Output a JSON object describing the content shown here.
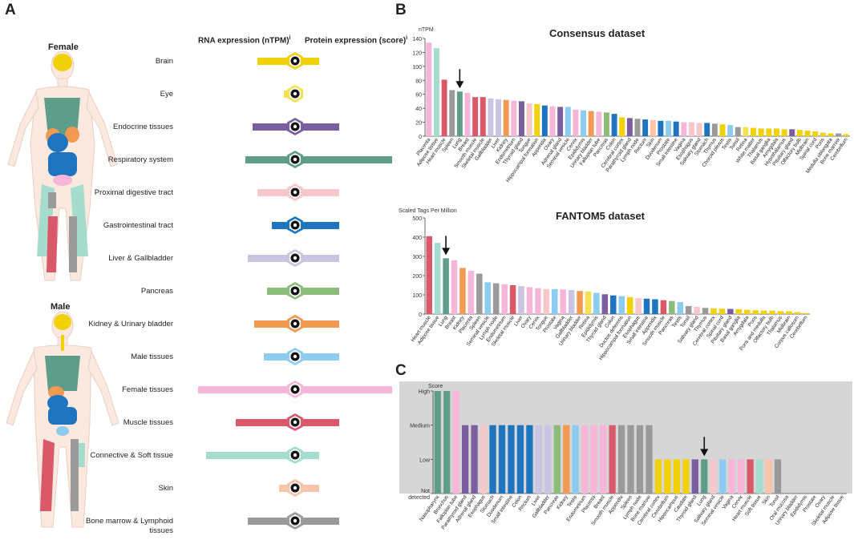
{
  "panels": {
    "a": "A",
    "b": "B",
    "c": "C"
  },
  "body_labels": {
    "female": "Female",
    "male": "Male"
  },
  "headers": {
    "rna": "RNA expression (nTPM)",
    "protein": "Protein expression (score)",
    "info_mark": "i"
  },
  "tissue_groups": [
    {
      "label": "Brain",
      "color": "#f1d10a",
      "rna": 0.24,
      "protein": 0.24
    },
    {
      "label": "Eye",
      "color": "#f5e052",
      "rna": 0.07,
      "protein": 0.0
    },
    {
      "label": "Endocrine tissues",
      "color": "#7a5ea0",
      "rna": 0.27,
      "protein": 0.45
    },
    {
      "label": "Respiratory system",
      "color": "#5e9d8a",
      "rna": 0.32,
      "protein": 0.98
    },
    {
      "label": "Proximal digestive tract",
      "color": "#f6c8cc",
      "rna": 0.24,
      "protein": 0.45
    },
    {
      "label": "Gastrointestinal tract",
      "color": "#1f74c0",
      "rna": 0.15,
      "protein": 0.45
    },
    {
      "label": "Liver & Gallbladder",
      "color": "#c9c4e2",
      "rna": 0.3,
      "protein": 0.45
    },
    {
      "label": "Pancreas",
      "color": "#8bbc7a",
      "rna": 0.18,
      "protein": 0.45
    },
    {
      "label": "Kidney & Urinary bladder",
      "color": "#f29a52",
      "rna": 0.26,
      "protein": 0.45
    },
    {
      "label": "Male tissues",
      "color": "#8cccf0",
      "rna": 0.2,
      "protein": 0.45
    },
    {
      "label": "Female tissues",
      "color": "#f6b6d8",
      "rna": 0.62,
      "protein": 0.98
    },
    {
      "label": "Muscle tissues",
      "color": "#d9586a",
      "rna": 0.38,
      "protein": 0.45
    },
    {
      "label": "Connective & Soft tissue",
      "color": "#a5dccd",
      "rna": 0.57,
      "protein": 0.24
    },
    {
      "label": "Skin",
      "color": "#f9c4a7",
      "rna": 0.1,
      "protein": 0.24
    },
    {
      "label": "Bone marrow & Lymphoid tissues",
      "color": "#9a9a9a",
      "rna": 0.3,
      "protein": 0.45
    }
  ],
  "chart_data": [
    {
      "type": "bar",
      "title": "Consensus dataset",
      "ylabel": "nTPM",
      "ylim": [
        0,
        140
      ],
      "yticks": [
        0,
        20,
        40,
        60,
        80,
        100,
        120,
        140
      ],
      "categories": [
        "Placenta",
        "Adipose tissue",
        "Heart muscle",
        "Spleen",
        "Lung",
        "Breast",
        "Smooth muscle",
        "Skeletal muscle",
        "Gallbladder",
        "Liver",
        "Kidney",
        "Endometrium",
        "Thyroid gland",
        "Tongue",
        "Hippocampal formation",
        "Appendix",
        "Ovary",
        "Adrenal gland",
        "Seminal vesicle",
        "Cervix",
        "Epididymis",
        "Urinary bladder",
        "Fallopian tube",
        "Pancreas",
        "Colon",
        "Cerebral cortex",
        "Parathyroid gland",
        "Lymph node",
        "Rectum",
        "Skin",
        "Duodenum",
        "Prostate",
        "Small intestine",
        "Vagina",
        "Esophagus",
        "Salivary gland",
        "Stomach",
        "Thymus",
        "Choroid plexus",
        "Testis",
        "Tonsil",
        "Retina",
        "White matter",
        "Thalamus",
        "Basal ganglia",
        "Amygdala",
        "Hypothalamus",
        "Pituitary gland",
        "Olfactory bulb",
        "Midbrain",
        "Spinal cord",
        "Pons",
        "Medulla oblongata",
        "Bone marrow",
        "Cerebellum"
      ],
      "values": [
        134,
        126,
        81,
        66,
        64,
        62,
        56,
        56,
        54,
        53,
        52,
        51,
        50,
        47,
        46,
        44,
        43,
        42,
        42,
        38,
        37,
        36,
        35,
        34,
        32,
        27,
        26,
        25,
        24,
        23,
        22,
        22,
        21,
        20,
        20,
        19,
        19,
        18,
        17,
        16,
        13,
        13,
        12,
        11,
        11,
        11,
        10,
        10,
        9,
        8,
        7,
        5,
        4,
        4,
        3
      ],
      "colors": [
        "#f6b6d8",
        "#a5dccd",
        "#d9586a",
        "#9a9a9a",
        "#5e9d8a",
        "#f6b6d8",
        "#d9586a",
        "#d9586a",
        "#c9c4e2",
        "#c9c4e2",
        "#f29a52",
        "#f6b6d8",
        "#7a5ea0",
        "#f6c8cc",
        "#f1d10a",
        "#1f74c0",
        "#f6b6d8",
        "#7a5ea0",
        "#8cccf0",
        "#f6b6d8",
        "#8cccf0",
        "#f29a52",
        "#f6b6d8",
        "#8bbc7a",
        "#1f74c0",
        "#f1d10a",
        "#7a5ea0",
        "#9a9a9a",
        "#1f74c0",
        "#f9c4a7",
        "#1f74c0",
        "#8cccf0",
        "#1f74c0",
        "#f6b6d8",
        "#f6c8cc",
        "#f6c8cc",
        "#1f74c0",
        "#9a9a9a",
        "#f1d10a",
        "#8cccf0",
        "#9a9a9a",
        "#f5e052",
        "#f1d10a",
        "#f1d10a",
        "#f1d10a",
        "#f1d10a",
        "#f1d10a",
        "#7a5ea0",
        "#f1d10a",
        "#f1d10a",
        "#f1d10a",
        "#f1d10a",
        "#f1d10a",
        "#9a9a9a",
        "#f1d10a"
      ],
      "arrow_category": "Lung"
    },
    {
      "type": "bar",
      "title": "FANTOM5 dataset",
      "ylabel": "Scaled Tags Per Million",
      "ylim": [
        0,
        500
      ],
      "yticks": [
        0,
        100,
        200,
        300,
        400,
        500
      ],
      "categories": [
        "Heart muscle",
        "Adipose tissue",
        "Lung",
        "Breast",
        "Kidney",
        "Placenta",
        "Spleen",
        "Seminal vesicle",
        "Lymph node",
        "Endometrium",
        "Skeletal muscle",
        "Liver",
        "Ovary",
        "Cervix",
        "Tongue",
        "Prostate",
        "Vagina",
        "Gallbladder",
        "Urinary bladder",
        "Retina",
        "Epididymis",
        "Thyroid gland",
        "Colon",
        "Ductus deferens",
        "Hippocampal formation",
        "Esophagus",
        "Small intestine",
        "Appendix",
        "Smooth muscle",
        "Pancreas",
        "Testis",
        "Tonsil",
        "Salivary gland",
        "Thymus",
        "Cerebral cortex",
        "Spinal cord",
        "Pituitary gland",
        "Basal ganglia",
        "Amygdala",
        "Pons",
        "Pons and medulla",
        "Olfactory bulb",
        "Thalamus",
        "Midbrain",
        "Corpus callosum",
        "Cerebellum"
      ],
      "values": [
        405,
        370,
        290,
        280,
        240,
        225,
        210,
        165,
        160,
        155,
        150,
        145,
        140,
        135,
        130,
        130,
        128,
        125,
        120,
        118,
        110,
        103,
        97,
        93,
        88,
        83,
        80,
        77,
        72,
        68,
        62,
        42,
        38,
        32,
        30,
        28,
        27,
        25,
        22,
        20,
        18,
        18,
        15,
        14,
        10,
        5
      ],
      "colors": [
        "#d9586a",
        "#a5dccd",
        "#5e9d8a",
        "#f6b6d8",
        "#f29a52",
        "#f6b6d8",
        "#9a9a9a",
        "#8cccf0",
        "#9a9a9a",
        "#f6b6d8",
        "#d9586a",
        "#c9c4e2",
        "#f6b6d8",
        "#f6b6d8",
        "#f6c8cc",
        "#8cccf0",
        "#f6b6d8",
        "#c9c4e2",
        "#f29a52",
        "#f5e052",
        "#8cccf0",
        "#7a5ea0",
        "#1f74c0",
        "#8cccf0",
        "#f1d10a",
        "#f6c8cc",
        "#1f74c0",
        "#1f74c0",
        "#d9586a",
        "#8bbc7a",
        "#8cccf0",
        "#9a9a9a",
        "#f6c8cc",
        "#9a9a9a",
        "#f1d10a",
        "#f1d10a",
        "#7a5ea0",
        "#f1d10a",
        "#f1d10a",
        "#f1d10a",
        "#f1d10a",
        "#f1d10a",
        "#f1d10a",
        "#f1d10a",
        "#f1d10a",
        "#f1d10a"
      ],
      "arrow_category": "Lung"
    },
    {
      "type": "bar",
      "title": "",
      "ylabel": "Score",
      "levels": [
        "Not detected",
        "Low",
        "Medium",
        "High"
      ],
      "categories": [
        "Nasopharynx",
        "Bronchus",
        "Fallopian tube",
        "Parathyroid gland",
        "Adrenal gland",
        "Esophagus",
        "Stomach",
        "Duodenum",
        "Small intestine",
        "Colon",
        "Rectum",
        "Liver",
        "Gallbladder",
        "Pancreas",
        "Kidney",
        "Testis",
        "Endometrium",
        "Placenta",
        "Breast",
        "Smooth muscle",
        "Appendix",
        "Spleen",
        "Lymph node",
        "Bone marrow",
        "Cerebral cortex",
        "Cerebellum",
        "Hippocampus",
        "Caudate",
        "Thyroid gland",
        "Lung",
        "Salivary gland",
        "Seminal vesicle",
        "Vagina",
        "Cervix",
        "Heart muscle",
        "Soft tissue",
        "Skin",
        "Tonsil",
        "Oral mucosa",
        "Urinary bladder",
        "Epididymis",
        "Prostate",
        "Ovary",
        "Skeletal muscle",
        "Adipose tissue"
      ],
      "values": [
        3,
        3,
        3,
        2,
        2,
        2,
        2,
        2,
        2,
        2,
        2,
        2,
        2,
        2,
        2,
        2,
        2,
        2,
        2,
        2,
        2,
        2,
        2,
        2,
        1,
        1,
        1,
        1,
        1,
        1,
        1,
        1,
        1,
        1,
        1,
        1,
        1,
        1,
        0,
        0,
        0,
        0,
        0,
        0,
        0
      ],
      "colors": [
        "#5e9d8a",
        "#5e9d8a",
        "#f6b6d8",
        "#7a5ea0",
        "#7a5ea0",
        "#f6c8cc",
        "#1f74c0",
        "#1f74c0",
        "#1f74c0",
        "#1f74c0",
        "#1f74c0",
        "#c9c4e2",
        "#c9c4e2",
        "#8bbc7a",
        "#f29a52",
        "#8cccf0",
        "#f6b6d8",
        "#f6b6d8",
        "#f6b6d8",
        "#d9586a",
        "#9a9a9a",
        "#9a9a9a",
        "#9a9a9a",
        "#9a9a9a",
        "#f1d10a",
        "#f1d10a",
        "#f1d10a",
        "#f1d10a",
        "#7a5ea0",
        "#5e9d8a",
        "#f6c8cc",
        "#8cccf0",
        "#f6b6d8",
        "#f6b6d8",
        "#d9586a",
        "#a5dccd",
        "#f9c4a7",
        "#9a9a9a",
        "#f6c8cc",
        "#f29a52",
        "#8cccf0",
        "#8cccf0",
        "#f6b6d8",
        "#d9586a",
        "#a5dccd"
      ],
      "arrow_category": "Lung"
    }
  ]
}
